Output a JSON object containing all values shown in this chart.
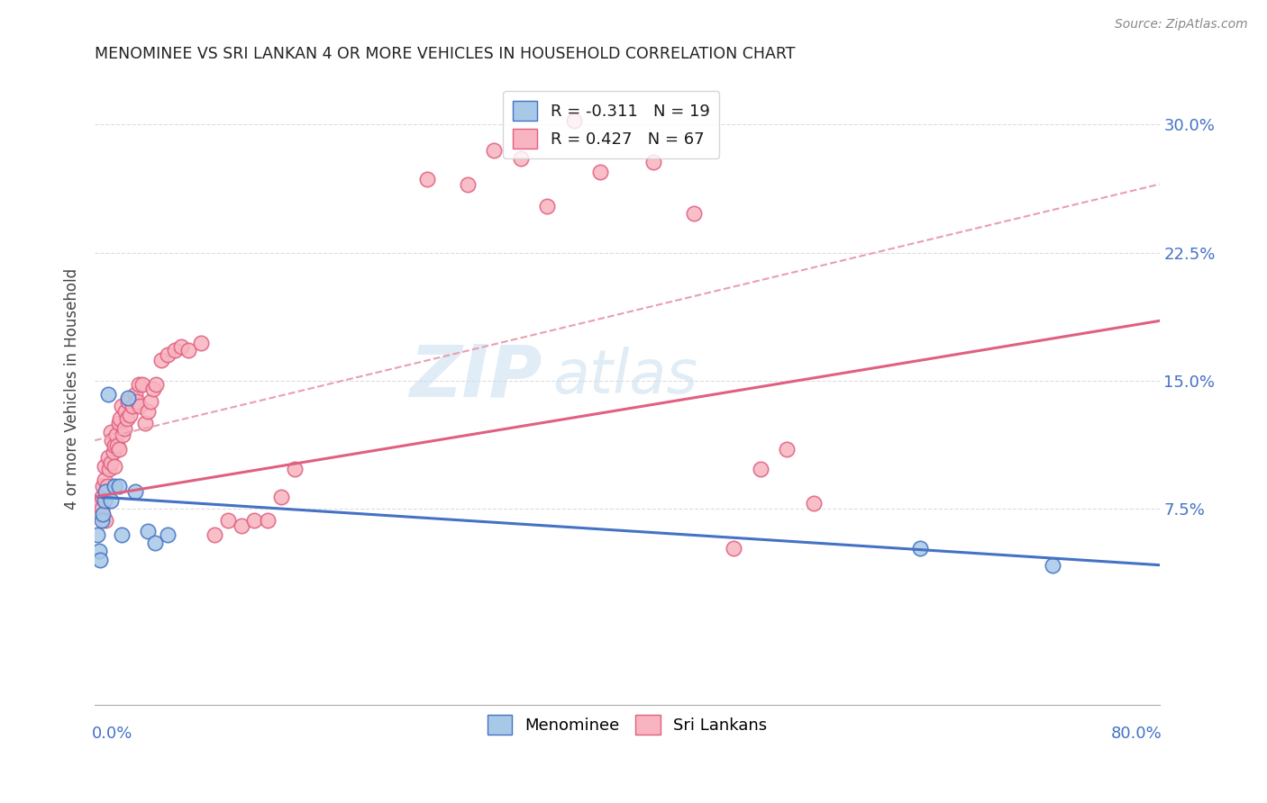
{
  "title": "MENOMINEE VS SRI LANKAN 4 OR MORE VEHICLES IN HOUSEHOLD CORRELATION CHART",
  "source": "Source: ZipAtlas.com",
  "ylabel": "4 or more Vehicles in Household",
  "ytick_labels_right": [
    "7.5%",
    "15.0%",
    "22.5%",
    "30.0%"
  ],
  "ytick_values": [
    0.075,
    0.15,
    0.225,
    0.3
  ],
  "xlim": [
    0.0,
    0.8
  ],
  "ylim": [
    -0.04,
    0.33
  ],
  "watermark_line1": "ZIP",
  "watermark_line2": "atlas",
  "legend_blue_label": "R = -0.311   N = 19",
  "legend_pink_label": "R = 0.427   N = 67",
  "blue_color": "#A8C8E8",
  "blue_edge_color": "#4472C4",
  "pink_color": "#F8B4C0",
  "pink_edge_color": "#E06080",
  "blue_line_color": "#4472C4",
  "pink_line_color": "#E06080",
  "dashed_line_color": "#E8A0B0",
  "background_color": "#FFFFFF",
  "grid_color": "#DDDDDD",
  "menominee_x": [
    0.002,
    0.003,
    0.004,
    0.005,
    0.006,
    0.007,
    0.008,
    0.01,
    0.012,
    0.015,
    0.018,
    0.02,
    0.025,
    0.03,
    0.04,
    0.045,
    0.055,
    0.62,
    0.72
  ],
  "menominee_y": [
    0.06,
    0.05,
    0.045,
    0.068,
    0.072,
    0.08,
    0.085,
    0.142,
    0.08,
    0.088,
    0.088,
    0.06,
    0.14,
    0.085,
    0.062,
    0.055,
    0.06,
    0.052,
    0.042
  ],
  "srilankans_x": [
    0.002,
    0.003,
    0.004,
    0.005,
    0.005,
    0.006,
    0.007,
    0.007,
    0.008,
    0.009,
    0.01,
    0.011,
    0.012,
    0.012,
    0.013,
    0.014,
    0.015,
    0.015,
    0.016,
    0.017,
    0.018,
    0.018,
    0.019,
    0.02,
    0.021,
    0.022,
    0.023,
    0.024,
    0.025,
    0.026,
    0.028,
    0.03,
    0.032,
    0.033,
    0.034,
    0.036,
    0.038,
    0.04,
    0.042,
    0.044,
    0.046,
    0.05,
    0.055,
    0.06,
    0.065,
    0.07,
    0.08,
    0.09,
    0.1,
    0.11,
    0.12,
    0.13,
    0.14,
    0.15,
    0.25,
    0.28,
    0.3,
    0.32,
    0.34,
    0.36,
    0.38,
    0.42,
    0.45,
    0.48,
    0.5,
    0.52,
    0.54
  ],
  "srilankans_y": [
    0.078,
    0.072,
    0.078,
    0.082,
    0.075,
    0.088,
    0.092,
    0.1,
    0.068,
    0.088,
    0.105,
    0.098,
    0.12,
    0.102,
    0.115,
    0.108,
    0.112,
    0.1,
    0.118,
    0.112,
    0.125,
    0.11,
    0.128,
    0.135,
    0.118,
    0.122,
    0.132,
    0.128,
    0.138,
    0.13,
    0.135,
    0.142,
    0.138,
    0.148,
    0.135,
    0.148,
    0.125,
    0.132,
    0.138,
    0.145,
    0.148,
    0.162,
    0.165,
    0.168,
    0.17,
    0.168,
    0.172,
    0.06,
    0.068,
    0.065,
    0.068,
    0.068,
    0.082,
    0.098,
    0.268,
    0.265,
    0.285,
    0.28,
    0.252,
    0.302,
    0.272,
    0.278,
    0.248,
    0.052,
    0.098,
    0.11,
    0.078
  ]
}
